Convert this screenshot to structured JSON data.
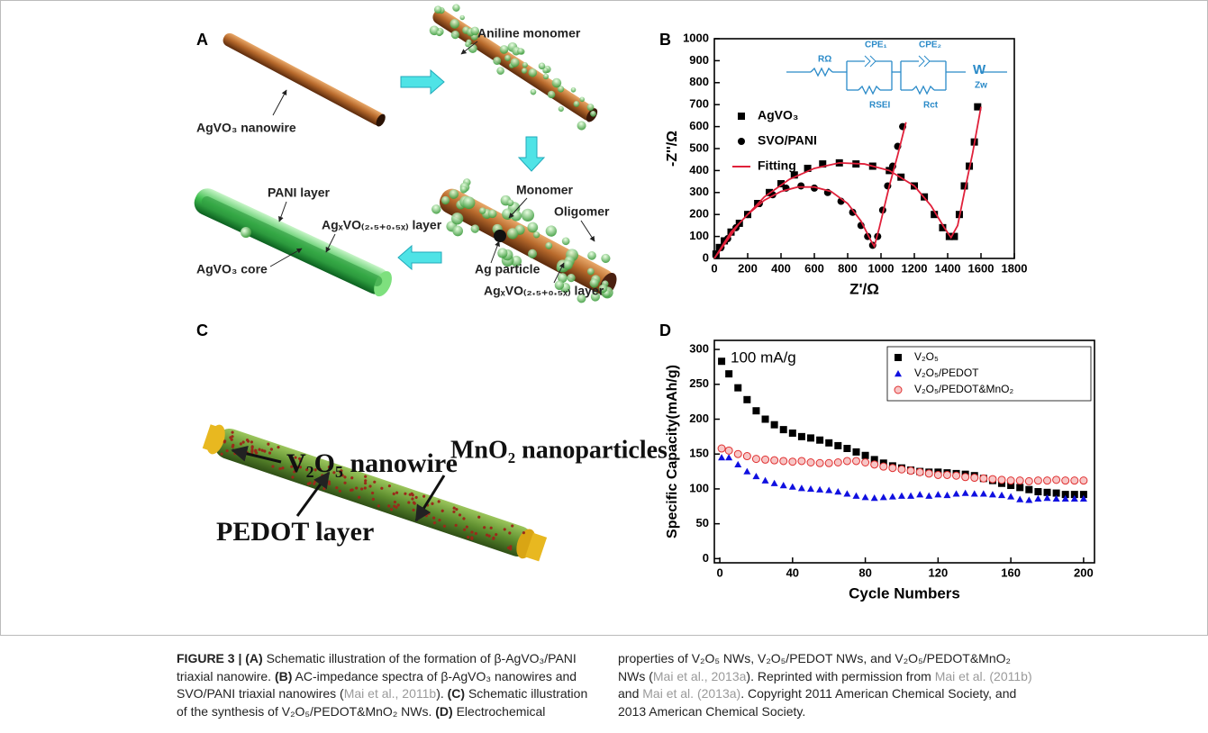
{
  "panels": {
    "A": {
      "letter": "A",
      "nanowire": "AgVO₃ nanowire",
      "aniline": "Aniline monomer",
      "monomer": "Monomer",
      "oligomer": "Oligomer",
      "ag_particle": "Ag particle",
      "layer_right": "AgₓVO₍₂.₅₊₀.₅ₓ₎ layer",
      "pani_layer": "PANI layer",
      "layer_left": "AgₓVO₍₂.₅₊₀.₅ₓ₎ layer",
      "core": "AgVO₃ core"
    },
    "C": {
      "letter": "C",
      "nanowire": "V₂O₅ nanowire",
      "nanoparticles": "MnO₂ nanoparticles",
      "pedot": "PEDOT layer"
    }
  },
  "chart_data": [
    {
      "type": "scatter",
      "panel": "B",
      "x_label": "Z'/Ω",
      "y_label": "-Z''/Ω",
      "xlim": [
        0,
        1800
      ],
      "xticks": [
        0,
        200,
        400,
        600,
        800,
        1000,
        1200,
        1400,
        1600,
        1800
      ],
      "ylim": [
        0,
        1000
      ],
      "yticks": [
        0,
        100,
        200,
        300,
        400,
        500,
        600,
        700,
        800,
        900,
        1000
      ],
      "legend": "upper left",
      "inset_labels": [
        "RΩ",
        "CPE₁",
        "CPE₂",
        "W",
        "RSEI",
        "Rct",
        "Zw"
      ],
      "series": [
        {
          "name": "AgVO₃",
          "color": "#000000",
          "marker": "square",
          "x": [
            10,
            30,
            60,
            100,
            150,
            200,
            260,
            330,
            400,
            480,
            560,
            650,
            750,
            850,
            950,
            1050,
            1120,
            1200,
            1260,
            1320,
            1370,
            1410,
            1440,
            1470,
            1500,
            1530,
            1560,
            1580
          ],
          "values": [
            20,
            50,
            80,
            120,
            160,
            200,
            250,
            300,
            340,
            380,
            410,
            430,
            435,
            430,
            420,
            400,
            370,
            330,
            280,
            200,
            140,
            100,
            100,
            200,
            330,
            420,
            530,
            690
          ]
        },
        {
          "name": "SVO/PANI",
          "color": "#000000",
          "marker": "circle",
          "x": [
            10,
            40,
            80,
            130,
            200,
            270,
            350,
            430,
            520,
            600,
            680,
            760,
            830,
            880,
            920,
            950,
            980,
            1010,
            1040,
            1070,
            1100,
            1130
          ],
          "values": [
            15,
            50,
            90,
            140,
            200,
            250,
            290,
            320,
            330,
            320,
            300,
            260,
            210,
            150,
            100,
            60,
            100,
            220,
            330,
            420,
            510,
            600
          ]
        },
        {
          "name": "Fitting",
          "color": "#e0203a",
          "marker": "line",
          "x": [
            0,
            100,
            200,
            300,
            400,
            500,
            600,
            700,
            800,
            880,
            940,
            960,
            990,
            1050,
            1100,
            1150,
            null,
            0,
            150,
            300,
            450,
            600,
            750,
            900,
            1050,
            1200,
            1300,
            1380,
            1420,
            1460,
            1500,
            1550,
            1600
          ],
          "values": [
            0,
            120,
            200,
            265,
            305,
            325,
            325,
            305,
            250,
            170,
            80,
            55,
            140,
            330,
            470,
            620,
            null,
            0,
            160,
            280,
            360,
            410,
            435,
            430,
            400,
            330,
            240,
            140,
            95,
            150,
            300,
            480,
            690
          ]
        }
      ]
    },
    {
      "type": "scatter",
      "panel": "D",
      "x_label": "Cycle Numbers",
      "y_label": "Specific Capacity(mAh/g)",
      "annotation": "100 mA/g",
      "xlim": [
        -3,
        206
      ],
      "xticks": [
        0,
        40,
        80,
        120,
        160,
        200
      ],
      "ylim": [
        -6,
        313
      ],
      "yticks": [
        0,
        50,
        100,
        150,
        200,
        250,
        300
      ],
      "legend": "upper right",
      "x": [
        1,
        5,
        10,
        15,
        20,
        25,
        30,
        35,
        40,
        45,
        50,
        55,
        60,
        65,
        70,
        75,
        80,
        85,
        90,
        95,
        100,
        105,
        110,
        115,
        120,
        125,
        130,
        135,
        140,
        145,
        150,
        155,
        160,
        165,
        170,
        175,
        180,
        185,
        190,
        195,
        200
      ],
      "series": [
        {
          "name": "V₂O₅",
          "color": "#000000",
          "marker": "square",
          "values": [
            283,
            265,
            245,
            228,
            212,
            200,
            192,
            185,
            180,
            175,
            173,
            170,
            166,
            162,
            158,
            153,
            148,
            142,
            137,
            133,
            130,
            127,
            125,
            124,
            124,
            123,
            122,
            121,
            119,
            115,
            112,
            108,
            105,
            102,
            99,
            96,
            95,
            94,
            92,
            92,
            92
          ]
        },
        {
          "name": "V₂O₅/PEDOT",
          "color": "#1010e0",
          "marker": "triangle",
          "values": [
            145,
            145,
            135,
            125,
            118,
            112,
            108,
            105,
            103,
            101,
            100,
            99,
            98,
            96,
            93,
            90,
            88,
            87,
            88,
            89,
            90,
            90,
            92,
            90,
            92,
            91,
            93,
            94,
            93,
            93,
            92,
            91,
            89,
            85,
            84,
            86,
            87,
            86,
            86,
            86,
            86
          ]
        },
        {
          "name": "V₂O₅/PEDOT&MnO₂",
          "color": "#e03030",
          "marker": "circle-open",
          "values": [
            158,
            155,
            150,
            147,
            143,
            142,
            141,
            140,
            139,
            140,
            138,
            137,
            137,
            138,
            140,
            140,
            138,
            135,
            132,
            130,
            128,
            126,
            124,
            122,
            120,
            120,
            119,
            117,
            116,
            115,
            114,
            113,
            112,
            112,
            111,
            112,
            112,
            113,
            112,
            112,
            112
          ]
        }
      ]
    }
  ],
  "caption": [
    "FIGURE 3 | (A)",
    " Schematic illustration of the formation of β-AgVO₃/PANI triaxial nanowire. ",
    "(B)",
    " AC-impedance spectra of β-AgVO₃ nanowires and SVO/PANI triaxial nanowires (",
    "Mai et al., 2011b",
    "). ",
    "(C)",
    " Schematic illustration of the synthesis of V₂O₅/PEDOT&MnO₂ NWs. ",
    "(D)",
    " Electrochemical properties of V₂O₅ NWs, V₂O₅/PEDOT NWs, and V₂O₅/PEDOT&MnO₂ NWs (",
    "Mai et al., 2013a",
    "). Reprinted with permission from ",
    "Mai et al. (2011b)",
    " and ",
    "Mai et al. (2013a)",
    ". Copyright 2011 American Chemical Society, and 2013 American Chemical Society."
  ]
}
